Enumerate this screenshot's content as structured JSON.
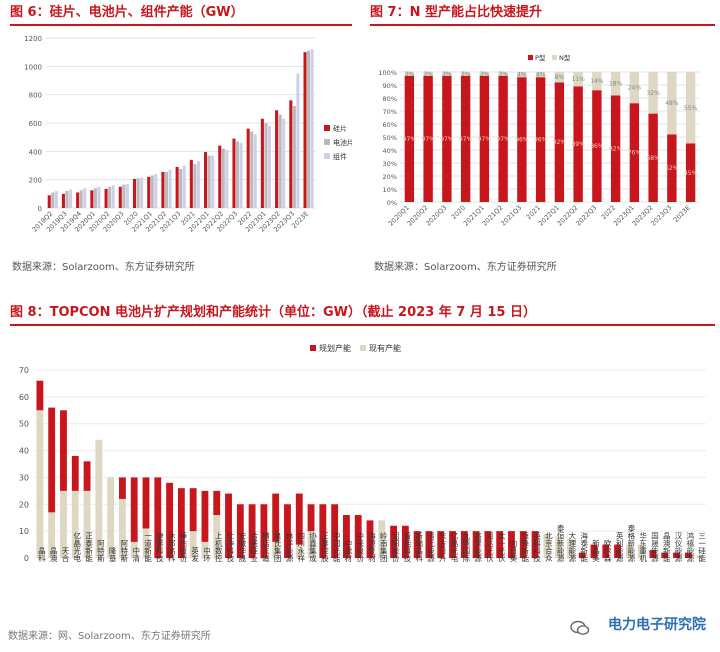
{
  "fig6": {
    "title": "图 6：硅片、电池片、组件产能（GW）",
    "source": "数据来源：Solarzoom、东方证券研究所"
  },
  "fig7": {
    "title": "图 7：N 型产能占比快速提升",
    "source": "数据来源：Solarzoom、东方证券研究所"
  },
  "fig8": {
    "title": "图 8：TOPCON 电池片扩产规划和产能统计（单位：GW）（截止 2023 年 7 月 15 日）",
    "source": "网、Solarzoom、东方证券研究所",
    "watermark_prefix": "数据来源："
  },
  "brand": {
    "name": "电力电子研究院"
  },
  "colors": {
    "red": "#c8161d",
    "beige": "#ddd7c3",
    "gray": "#b9b9c0",
    "lavender": "#cfd0e6",
    "grid": "#e3e3e3"
  },
  "chart_data": [
    {
      "id": "fig6",
      "type": "bar",
      "categories": [
        "2019Q2",
        "2019Q3",
        "2019Q4",
        "2020Q1",
        "2020Q2",
        "2020Q3",
        "2020",
        "2021Q1",
        "2021Q2",
        "2021Q3",
        "2021",
        "2022Q1",
        "2022Q2",
        "2022Q3",
        "2022",
        "2023Q1",
        "2023Q2",
        "2023Q3",
        "2023E"
      ],
      "series": [
        {
          "name": "硅片",
          "values": [
            90,
            100,
            110,
            125,
            135,
            150,
            205,
            220,
            255,
            290,
            340,
            395,
            440,
            490,
            560,
            630,
            690,
            760,
            1100
          ]
        },
        {
          "name": "电池片",
          "values": [
            110,
            120,
            125,
            140,
            150,
            165,
            210,
            230,
            255,
            275,
            310,
            370,
            420,
            470,
            540,
            600,
            660,
            720,
            1110
          ]
        },
        {
          "name": "组件",
          "values": [
            120,
            130,
            140,
            150,
            160,
            170,
            215,
            240,
            270,
            300,
            330,
            370,
            410,
            460,
            520,
            580,
            630,
            950,
            1120
          ]
        }
      ],
      "ylim": [
        0,
        1200
      ],
      "yticks": [
        0,
        200,
        400,
        600,
        800,
        1000,
        1200
      ],
      "legend": "right"
    },
    {
      "id": "fig7",
      "type": "bar",
      "stacked": true,
      "categories": [
        "2020Q1",
        "2020Q2",
        "2020Q3",
        "2020",
        "2021Q1",
        "2021Q2",
        "2021Q3",
        "2021",
        "2022Q1",
        "2022Q2",
        "2022Q3",
        "2022",
        "2023Q1",
        "2023Q2",
        "2023Q3",
        "2023E"
      ],
      "series": [
        {
          "name": "P型",
          "values": [
            97,
            97,
            97,
            97,
            97,
            97,
            96,
            96,
            92,
            89,
            86,
            82,
            76,
            68,
            52,
            45
          ]
        },
        {
          "name": "N型",
          "values": [
            3,
            3,
            3,
            3,
            3,
            3,
            4,
            4,
            8,
            11,
            14,
            18,
            24,
            32,
            48,
            55
          ]
        }
      ],
      "p_labels": [
        "97%",
        "97%",
        "97%",
        "97%",
        "97%",
        "97%",
        "96%",
        "96%",
        "92%",
        "89%",
        "86%",
        "82%",
        "76%",
        "68%",
        "52%",
        "45%"
      ],
      "n_labels": [
        "3%",
        "3%",
        "3%",
        "3%",
        "3%",
        "3%",
        "4%",
        "4%",
        "8%",
        "11%",
        "14%",
        "18%",
        "24%",
        "32%",
        "48%",
        "55%"
      ],
      "ylim": [
        0,
        100
      ],
      "yticks": [
        "0%",
        "10%",
        "20%",
        "30%",
        "40%",
        "50%",
        "60%",
        "70%",
        "80%",
        "90%",
        "100%"
      ],
      "legend": "top"
    },
    {
      "id": "fig8",
      "type": "bar",
      "stacked": true,
      "categories": [
        "晶科",
        "晶澳",
        "天合",
        "亿晶光电",
        "正泰新能",
        "阿特斯",
        "隆基",
        "阿特斯",
        "中清",
        "一道新能",
        "捷泰科技",
        "沐邦高科",
        "棒杰股份",
        "英发",
        "中环",
        "上机数控",
        "仕净科技",
        "安徽华晟",
        "合盛硅业",
        "横店东磁",
        "皇氏集团",
        "林洋能源",
        "四川永祥",
        "协鑫集成",
        "正泰控股",
        "中润光能",
        "中建材",
        "中来股份",
        "海源复材",
        "岭南集团",
        "润阳股份",
        "晋能科技",
        "新瑞晶科",
        "清元能源",
        "东方日升",
        "亿晶光电",
        "九鼎国际",
        "高景能源",
        "润达光伏",
        "太一光伏",
        "向日葵",
        "恒锋新能",
        "英科科技",
        "北京合众",
        "泰恒新能源",
        "大理能源",
        "海泰新能",
        "新晶美",
        "欧尔森",
        "英利能源",
        "泰格新能源",
        "华东重机",
        "国晟能源",
        "晶澳新能",
        "汉仪能源",
        "鸿禧能源",
        "三一硅能"
      ],
      "series": [
        {
          "name": "规划产能",
          "values": [
            11,
            39,
            30,
            13,
            11,
            0,
            0,
            8,
            24,
            19,
            30,
            28,
            26,
            16,
            19,
            9,
            24,
            20,
            20,
            20,
            18,
            20,
            19,
            10,
            20,
            20,
            16,
            16,
            14,
            0,
            12,
            12,
            10,
            10,
            10,
            10,
            10,
            10,
            10,
            10,
            10,
            10,
            10,
            0,
            0,
            0,
            2,
            5,
            5,
            5,
            0,
            0,
            3,
            2,
            2,
            2,
            0
          ]
        },
        {
          "name": "现有产能",
          "values": [
            55,
            17,
            25,
            25,
            25,
            44,
            30,
            22,
            6,
            11,
            0,
            0,
            0,
            10,
            6,
            16,
            0,
            0,
            0,
            0,
            6,
            0,
            5,
            10,
            0,
            0,
            0,
            0,
            0,
            14,
            0,
            0,
            0,
            0,
            0,
            0,
            0,
            0,
            0,
            0,
            0,
            0,
            0,
            9,
            8,
            7,
            0,
            0,
            0,
            0,
            5,
            5,
            0,
            0,
            0,
            0,
            1
          ]
        }
      ],
      "ylim": [
        0,
        70
      ],
      "yticks": [
        0,
        10,
        20,
        30,
        40,
        50,
        60,
        70
      ],
      "legend": "top"
    }
  ]
}
